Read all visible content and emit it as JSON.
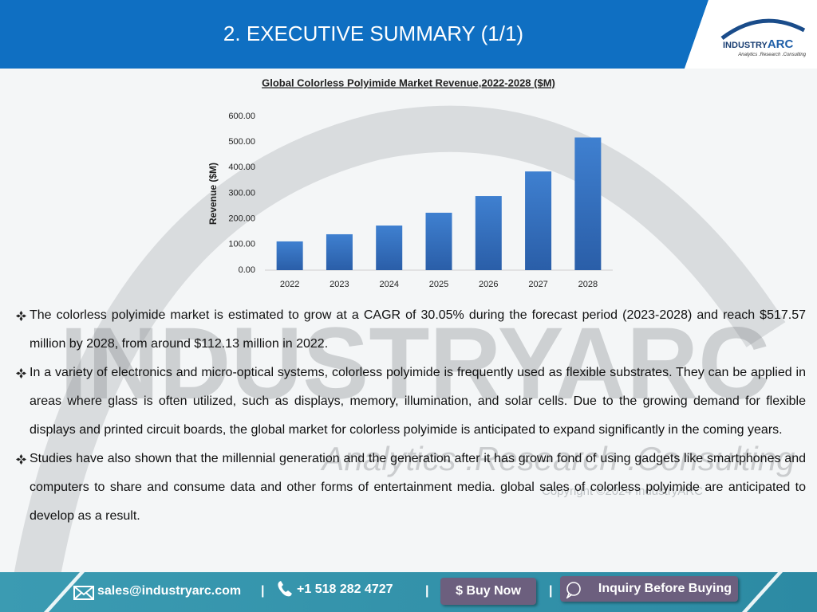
{
  "header": {
    "title": "2. EXECUTIVE SUMMARY (1/1)",
    "logo": {
      "brand": "INDUSTRY",
      "brand_accent": "ARC",
      "tagline": "Analytics .Research .Consulting"
    }
  },
  "chart_data": {
    "type": "bar",
    "title": "Global Colorless Polyimide Market Revenue,2022-2028 ($M)",
    "y_label": "Revenue ($M)",
    "categories": [
      "2022",
      "2023",
      "2024",
      "2025",
      "2026",
      "2027",
      "2028"
    ],
    "values": [
      112.13,
      140,
      174,
      224,
      289,
      385,
      517.57
    ],
    "color": "#3a74c4",
    "ylim": [
      0,
      600
    ],
    "yticks": [
      {
        "value": 0,
        "label": "0.00"
      },
      {
        "value": 100,
        "label": "100.00"
      },
      {
        "value": 200,
        "label": "200.00"
      },
      {
        "value": 300,
        "label": "300.00"
      },
      {
        "value": 400,
        "label": "400.00"
      },
      {
        "value": 500,
        "label": "500.00"
      },
      {
        "value": 600,
        "label": "600.00"
      }
    ],
    "grid": false
  },
  "bullets": [
    "The colorless polyimide market is estimated to grow at a CAGR of 30.05% during the forecast period (2023-2028) and reach $517.57 million by 2028, from around $112.13 million in 2022.",
    "In a variety of electronics and micro-optical systems, colorless polyimide is frequently used as flexible substrates. They can be applied in areas where glass is often utilized, such as displays, memory, illumination, and solar cells. Due to the growing demand for flexible displays and printed circuit boards, the global market for colorless polyimide is anticipated to expand significantly in the coming years.",
    "Studies have also shown that the millennial generation and the generation after it has grown fond of using gadgets like smartphones and computers to share and consume data and other forms of entertainment media. global sales of colorless polyimide are anticipated to develop as a result."
  ],
  "watermark": {
    "brand": "INDUSTRYARC",
    "tagline": "Analytics .Research .Consulting",
    "copyright": "Copyright ©2024 IndustryARC"
  },
  "footer": {
    "email": "sales@industryarc.com",
    "separator": "|",
    "phone": "+1 518 282 4727",
    "buy_now": "$ Buy Now",
    "inquiry": "Inquiry Before Buying"
  }
}
